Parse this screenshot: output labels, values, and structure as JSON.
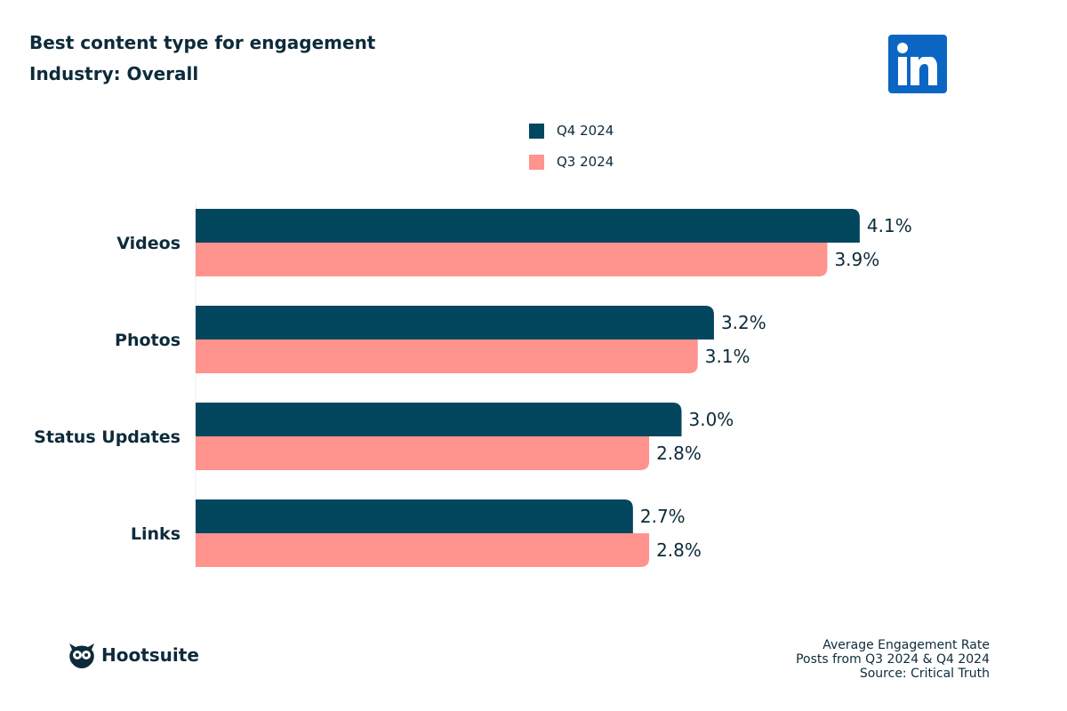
{
  "header": {
    "title": "Best content type for engagement",
    "subtitle": "Industry: Overall"
  },
  "logos": {
    "linkedin": "in",
    "brand": "Hootsuite"
  },
  "footer": {
    "lines": [
      "Average Engagement Rate",
      "Posts from Q3 2024 & Q4 2024",
      "Source: Critical Truth"
    ]
  },
  "chart_data": {
    "type": "bar",
    "orientation": "horizontal",
    "title": "Best content type for engagement",
    "subtitle": "Industry: Overall",
    "categories": [
      "Videos",
      "Photos",
      "Status Updates",
      "Links"
    ],
    "series": [
      {
        "name": "Q4 2024",
        "color": "#02475e",
        "values": [
          4.1,
          3.2,
          3.0,
          2.7
        ],
        "labels": [
          "4.1%",
          "3.2%",
          "3.0%",
          "2.7%"
        ]
      },
      {
        "name": "Q3 2024",
        "color": "#ff938d",
        "values": [
          3.9,
          3.1,
          2.8,
          2.8
        ],
        "labels": [
          "3.9%",
          "3.1%",
          "2.8%",
          "2.8%"
        ]
      }
    ],
    "legend": "top-center",
    "grid": false,
    "xlim": [
      0,
      4.1
    ]
  }
}
